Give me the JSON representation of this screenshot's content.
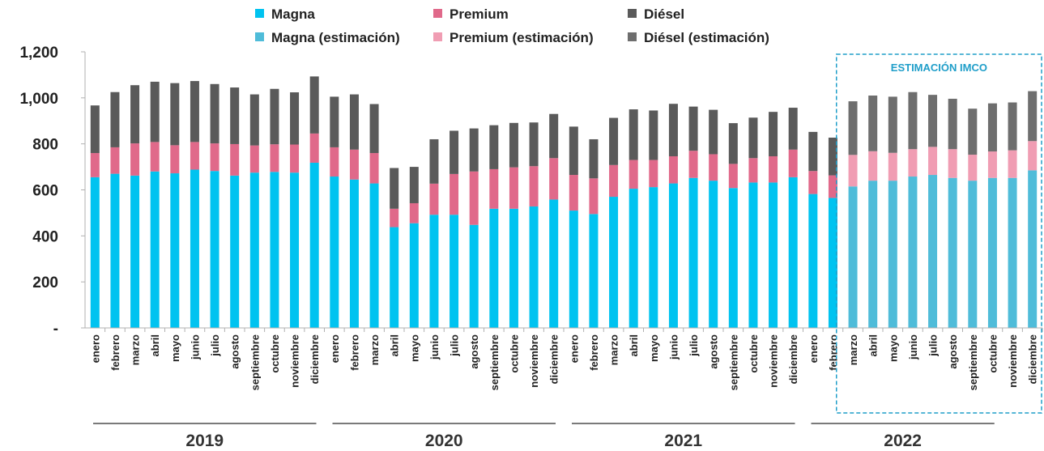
{
  "chart_data": {
    "type": "bar",
    "stacked": true,
    "ylim": [
      0,
      1200
    ],
    "yticks": [
      0,
      200,
      400,
      600,
      800,
      1000,
      1200
    ],
    "ytick_labels": [
      "-",
      "200",
      "400",
      "600",
      "800",
      "1,000",
      "1,200"
    ],
    "grid": false,
    "legend_position": "top",
    "categories": [
      "enero",
      "febrero",
      "marzo",
      "abril",
      "mayo",
      "junio",
      "julio",
      "agosto",
      "septiembre",
      "octubre",
      "noviembre",
      "diciembre",
      "enero",
      "febrero",
      "marzo",
      "abril",
      "mayo",
      "junio",
      "julio",
      "agosto",
      "septiembre",
      "octubre",
      "noviembre",
      "diciembre",
      "enero",
      "febrero",
      "marzo",
      "abril",
      "mayo",
      "junio",
      "julio",
      "agosto",
      "septiembre",
      "octubre",
      "noviembre",
      "diciembre",
      "enero",
      "febrero",
      "marzo",
      "abril",
      "mayo",
      "junio",
      "julio",
      "agosto",
      "septiembre",
      "octubre",
      "noviembre",
      "diciembre"
    ],
    "years": [
      {
        "label": "2019",
        "start": 0,
        "end": 11
      },
      {
        "label": "2020",
        "start": 12,
        "end": 23
      },
      {
        "label": "2021",
        "start": 24,
        "end": 35
      },
      {
        "label": "2022",
        "start": 36,
        "end": 45
      }
    ],
    "estimate_start": 38,
    "series": [
      {
        "name": "Magna",
        "estimate_name": "Magna (estimación)",
        "color": "#00c3f0",
        "estimate_color": "#4fbcd9",
        "values": [
          655,
          670,
          662,
          680,
          672,
          688,
          682,
          662,
          675,
          678,
          675,
          718,
          658,
          645,
          628,
          438,
          455,
          492,
          492,
          448,
          518,
          518,
          528,
          558,
          510,
          495,
          570,
          605,
          612,
          628,
          652,
          640,
          608,
          632,
          632,
          655,
          582,
          565,
          615,
          640,
          640,
          658,
          665,
          652,
          640,
          652,
          652,
          685
        ]
      },
      {
        "name": "Premium",
        "estimate_name": "Premium (estimación)",
        "color": "#e0698a",
        "estimate_color": "#f09db3",
        "values": [
          105,
          115,
          140,
          128,
          122,
          120,
          120,
          137,
          118,
          120,
          122,
          127,
          127,
          130,
          132,
          80,
          87,
          135,
          177,
          232,
          172,
          180,
          175,
          180,
          155,
          155,
          138,
          125,
          118,
          118,
          118,
          115,
          105,
          106,
          114,
          120,
          100,
          98,
          137,
          128,
          121,
          119,
          122,
          125,
          113,
          115,
          120,
          127
        ]
      },
      {
        "name": "Diésel",
        "estimate_name": "Diésel (estimación)",
        "color": "#5a5a5a",
        "estimate_color": "#6e6e6e",
        "values": [
          207,
          240,
          253,
          262,
          270,
          265,
          258,
          246,
          222,
          241,
          227,
          248,
          220,
          240,
          213,
          177,
          158,
          193,
          188,
          187,
          191,
          193,
          190,
          192,
          210,
          170,
          205,
          220,
          215,
          228,
          192,
          193,
          177,
          176,
          193,
          182,
          170,
          164,
          233,
          242,
          244,
          248,
          226,
          219,
          200,
          209,
          208,
          217
        ]
      }
    ],
    "annotation": "ESTIMACIÓN IMCO"
  }
}
